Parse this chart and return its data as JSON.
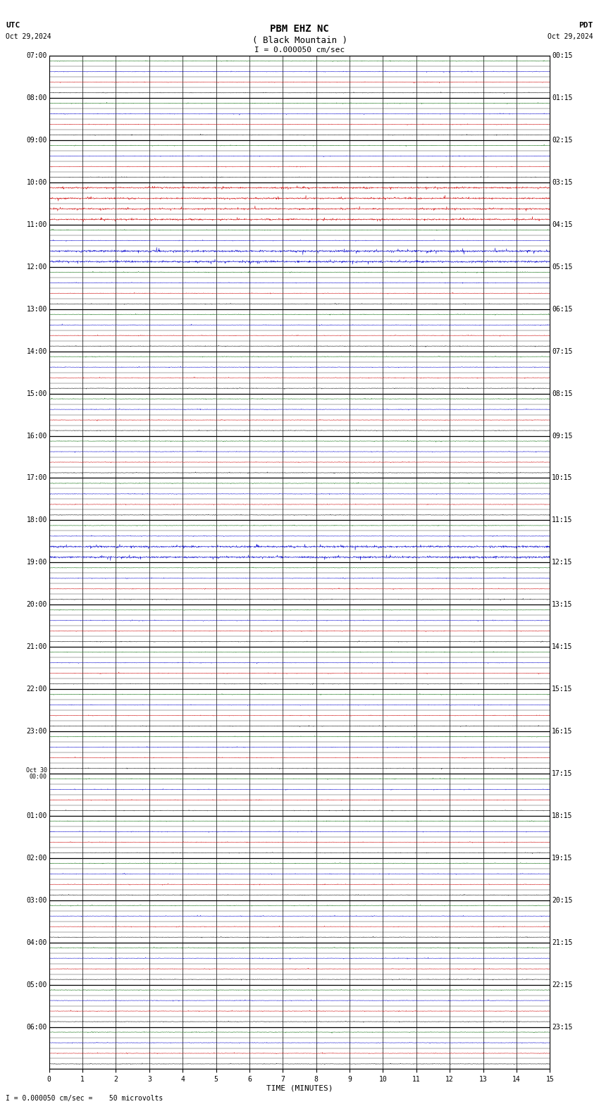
{
  "title_line1": "PBM EHZ NC",
  "title_line2": "( Black Mountain )",
  "scale_label": "I = 0.000050 cm/sec",
  "footer_label": "I = 0.000050 cm/sec =    50 microvolts",
  "utc_label": "UTC",
  "pdt_label": "PDT",
  "date_left": "Oct 29,2024",
  "date_right": "Oct 29,2024",
  "xlabel": "TIME (MINUTES)",
  "left_times": [
    "07:00",
    "",
    "",
    "",
    "08:00",
    "",
    "",
    "",
    "09:00",
    "",
    "",
    "",
    "10:00",
    "",
    "",
    "",
    "11:00",
    "",
    "",
    "",
    "12:00",
    "",
    "",
    "",
    "13:00",
    "",
    "",
    "",
    "14:00",
    "",
    "",
    "",
    "15:00",
    "",
    "",
    "",
    "16:00",
    "",
    "",
    "",
    "17:00",
    "",
    "",
    "",
    "18:00",
    "",
    "",
    "",
    "19:00",
    "",
    "",
    "",
    "20:00",
    "",
    "",
    "",
    "21:00",
    "",
    "",
    "",
    "22:00",
    "",
    "",
    "",
    "23:00",
    "",
    "",
    "",
    "Oct 30\n00:00",
    "",
    "",
    "",
    "01:00",
    "",
    "",
    "",
    "02:00",
    "",
    "",
    "",
    "03:00",
    "",
    "",
    "",
    "04:00",
    "",
    "",
    "",
    "05:00",
    "",
    "",
    "",
    "06:00",
    "",
    "",
    ""
  ],
  "right_times": [
    "00:15",
    "",
    "",
    "",
    "01:15",
    "",
    "",
    "",
    "02:15",
    "",
    "",
    "",
    "03:15",
    "",
    "",
    "",
    "04:15",
    "",
    "",
    "",
    "05:15",
    "",
    "",
    "",
    "06:15",
    "",
    "",
    "",
    "07:15",
    "",
    "",
    "",
    "08:15",
    "",
    "",
    "",
    "09:15",
    "",
    "",
    "",
    "10:15",
    "",
    "",
    "",
    "11:15",
    "",
    "",
    "",
    "12:15",
    "",
    "",
    "",
    "13:15",
    "",
    "",
    "",
    "14:15",
    "",
    "",
    "",
    "15:15",
    "",
    "",
    "",
    "16:15",
    "",
    "",
    "",
    "17:15",
    "",
    "",
    "",
    "18:15",
    "",
    "",
    "",
    "19:15",
    "",
    "",
    "",
    "20:15",
    "",
    "",
    "",
    "21:15",
    "",
    "",
    "",
    "22:15",
    "",
    "",
    "",
    "23:15",
    "",
    "",
    ""
  ],
  "num_rows": 96,
  "x_min": 0,
  "x_max": 15,
  "bg_color": "#ffffff",
  "grid_color": "#000000",
  "row_colors": [
    "#000000",
    "#cc0000",
    "#0000cc",
    "#006600"
  ],
  "noise_amplitude": 0.018,
  "strong_blue_rows": [
    48,
    49,
    76,
    77
  ],
  "strong_blue_amp": 0.08,
  "strong_red_rows": [
    80,
    81,
    82,
    83
  ],
  "strong_red_amp": 0.06,
  "font_size_title": 10,
  "font_size_labels": 8,
  "font_size_ticks": 7,
  "font_size_footer": 7
}
